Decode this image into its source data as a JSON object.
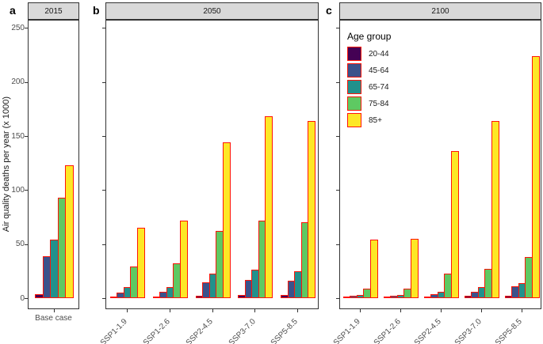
{
  "figure": {
    "y_axis_title": "Air quality deaths per year (x 1000)"
  },
  "chart_data": {
    "type": "bar",
    "ylabel": "Air quality deaths per year (x 1000)",
    "ylim": [
      0,
      265
    ],
    "yticks": [
      0,
      50,
      100,
      150,
      200,
      250
    ],
    "grid": false,
    "bar_outline_color": "#ff1408",
    "legend_title": "Age group",
    "legend_position": "top-left of panel c",
    "age_groups": [
      {
        "label": "20-44",
        "color": "#440154"
      },
      {
        "label": "45-64",
        "color": "#3b528b"
      },
      {
        "label": "65-74",
        "color": "#21918c"
      },
      {
        "label": "75-84",
        "color": "#5ec962"
      },
      {
        "label": "85+",
        "color": "#fde725"
      }
    ],
    "panels": [
      {
        "letter": "a",
        "title": "2015",
        "x_labels_rotated": false,
        "categories": [
          "Base case"
        ],
        "values": [
          [
            4,
            39,
            54,
            93,
            123
          ]
        ]
      },
      {
        "letter": "b",
        "title": "2050",
        "x_labels_rotated": true,
        "categories": [
          "SSP1-1.9",
          "SSP1-2.6",
          "SSP2-4.5",
          "SSP3-7.0",
          "SSP5-8.5"
        ],
        "values": [
          [
            1,
            5,
            10,
            29,
            65
          ],
          [
            1,
            6,
            10,
            32,
            72
          ],
          [
            2,
            15,
            23,
            62,
            144
          ],
          [
            3,
            17,
            26,
            72,
            168
          ],
          [
            3,
            16,
            25,
            70,
            164
          ]
        ]
      },
      {
        "letter": "c",
        "title": "2100",
        "x_labels_rotated": true,
        "categories": [
          "SSP1-1.9",
          "SSP1-2.6",
          "SSP2-4.5",
          "SSP3-7.0",
          "SSP5-8.5"
        ],
        "values": [
          [
            0.5,
            2,
            3,
            9,
            54
          ],
          [
            0.5,
            2,
            3,
            9,
            55
          ],
          [
            1,
            4,
            6,
            23,
            136
          ],
          [
            2,
            6,
            10,
            27,
            164
          ],
          [
            2,
            11,
            14,
            38,
            224
          ]
        ]
      }
    ]
  }
}
